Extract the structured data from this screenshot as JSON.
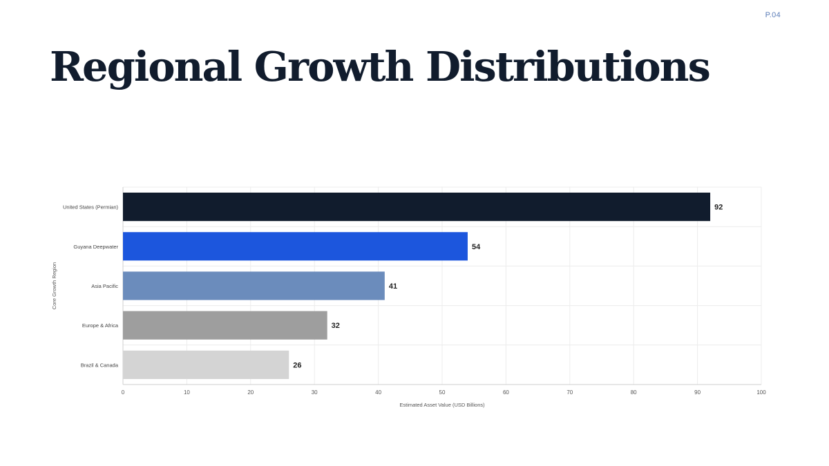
{
  "page": {
    "number": "P.04",
    "title": "Regional Growth Distributions"
  },
  "chart_data": {
    "type": "bar",
    "orientation": "horizontal",
    "categories": [
      "United States (Permian)",
      "Guyana Deepwater",
      "Asia Pacific",
      "Europe & Africa",
      "Brazil & Canada"
    ],
    "values": [
      92,
      54,
      41,
      32,
      26
    ],
    "colors": [
      "#111c2d",
      "#1c56dd",
      "#6b8cbc",
      "#9e9e9e",
      "#d4d4d4"
    ],
    "xlabel": "Estimated Asset Value (USD Billions)",
    "ylabel": "Core Growth Region",
    "xlim": [
      0,
      100
    ],
    "xticks": [
      0,
      10,
      20,
      30,
      40,
      50,
      60,
      70,
      80,
      90,
      100
    ],
    "grid": true,
    "data_labels": true,
    "legend": "none"
  }
}
